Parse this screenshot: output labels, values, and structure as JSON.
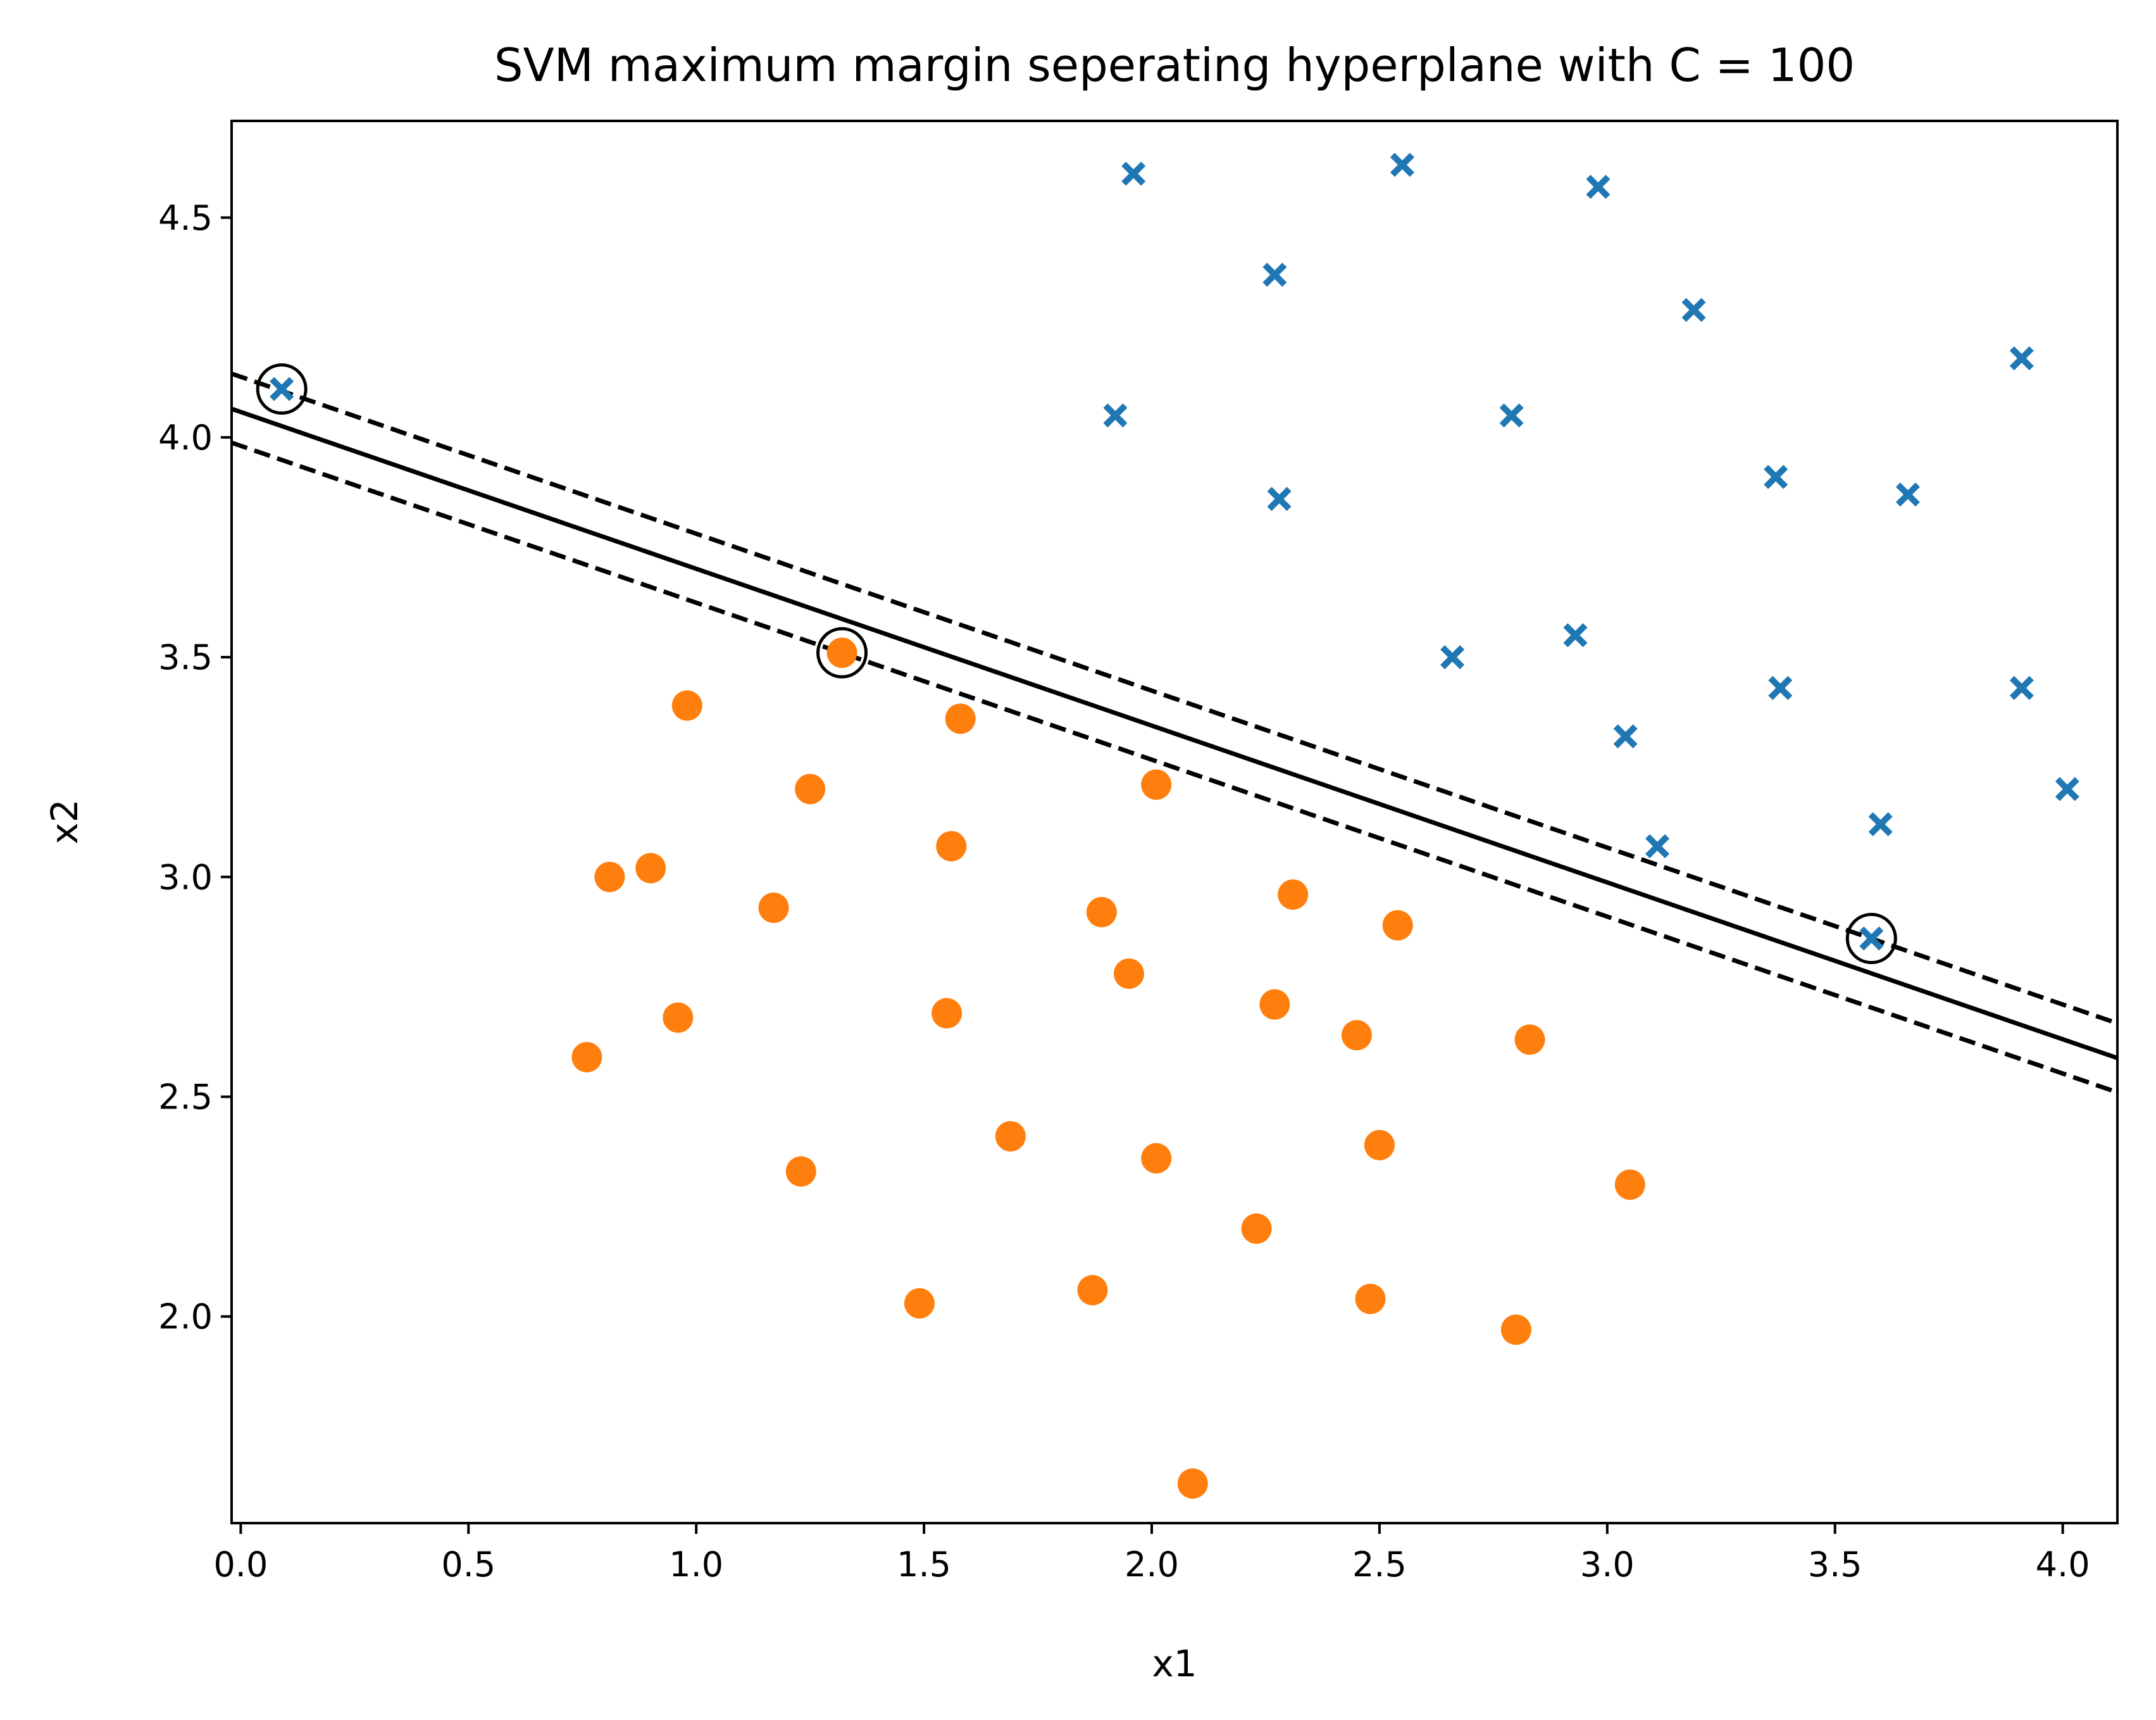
{
  "chart_data": {
    "type": "scatter",
    "title": "SVM maximum margin seperating hyperplane with C = 100",
    "xlabel": "x1",
    "ylabel": "x2",
    "xlim": [
      -0.02,
      4.12
    ],
    "ylim": [
      1.53,
      4.72
    ],
    "xticks": [
      {
        "value": 0.0,
        "label": "0.0"
      },
      {
        "value": 0.5,
        "label": "0.5"
      },
      {
        "value": 1.0,
        "label": "1.0"
      },
      {
        "value": 1.5,
        "label": "1.5"
      },
      {
        "value": 2.0,
        "label": "2.0"
      },
      {
        "value": 2.5,
        "label": "2.5"
      },
      {
        "value": 3.0,
        "label": "3.0"
      },
      {
        "value": 3.5,
        "label": "3.5"
      },
      {
        "value": 4.0,
        "label": "4.0"
      }
    ],
    "yticks": [
      {
        "value": 2.0,
        "label": "2.0"
      },
      {
        "value": 2.5,
        "label": "2.5"
      },
      {
        "value": 3.0,
        "label": "3.0"
      },
      {
        "value": 3.5,
        "label": "3.5"
      },
      {
        "value": 4.0,
        "label": "4.0"
      },
      {
        "value": 4.5,
        "label": "4.5"
      }
    ],
    "grid": false,
    "legend": "none",
    "series": [
      {
        "marker": "x-filled",
        "color": "#1f77b4",
        "points": [
          [
            0.09,
            4.11
          ],
          [
            1.96,
            4.6
          ],
          [
            2.27,
            4.37
          ],
          [
            2.55,
            4.62
          ],
          [
            2.98,
            4.57
          ],
          [
            3.19,
            4.29
          ],
          [
            3.91,
            4.18
          ],
          [
            1.92,
            4.05
          ],
          [
            2.79,
            4.05
          ],
          [
            2.28,
            3.86
          ],
          [
            3.37,
            3.91
          ],
          [
            3.66,
            3.87
          ],
          [
            2.66,
            3.5
          ],
          [
            2.93,
            3.55
          ],
          [
            3.38,
            3.43
          ],
          [
            3.91,
            3.43
          ],
          [
            3.04,
            3.32
          ],
          [
            4.01,
            3.2
          ],
          [
            3.11,
            3.07
          ],
          [
            3.6,
            3.12
          ],
          [
            3.58,
            2.86
          ]
        ]
      },
      {
        "marker": "circle",
        "color": "#ff7f0e",
        "points": [
          [
            1.32,
            3.51
          ],
          [
            0.98,
            3.39
          ],
          [
            1.58,
            3.36
          ],
          [
            1.25,
            3.2
          ],
          [
            2.01,
            3.21
          ],
          [
            1.56,
            3.07
          ],
          [
            0.81,
            3.0
          ],
          [
            0.9,
            3.02
          ],
          [
            1.17,
            2.93
          ],
          [
            1.89,
            2.92
          ],
          [
            2.31,
            2.96
          ],
          [
            2.54,
            2.89
          ],
          [
            1.95,
            2.78
          ],
          [
            0.96,
            2.68
          ],
          [
            1.55,
            2.69
          ],
          [
            2.27,
            2.71
          ],
          [
            2.45,
            2.64
          ],
          [
            2.83,
            2.63
          ],
          [
            0.76,
            2.59
          ],
          [
            1.69,
            2.41
          ],
          [
            2.01,
            2.36
          ],
          [
            2.5,
            2.39
          ],
          [
            1.23,
            2.33
          ],
          [
            3.05,
            2.3
          ],
          [
            2.23,
            2.2
          ],
          [
            1.49,
            2.03
          ],
          [
            1.87,
            2.06
          ],
          [
            2.48,
            2.04
          ],
          [
            2.8,
            1.97
          ],
          [
            2.09,
            1.62
          ]
        ]
      }
    ],
    "support_vectors": [
      [
        0.09,
        4.11
      ],
      [
        1.32,
        3.51
      ],
      [
        3.58,
        2.86
      ]
    ],
    "lines": [
      {
        "style": "solid",
        "color": "#000000",
        "from": [
          -0.02,
          4.065
        ],
        "to": [
          4.12,
          2.588
        ]
      },
      {
        "style": "dashed",
        "color": "#000000",
        "from": [
          -0.02,
          4.145
        ],
        "to": [
          4.12,
          2.667
        ]
      },
      {
        "style": "dashed",
        "color": "#000000",
        "from": [
          -0.02,
          3.988
        ],
        "to": [
          4.12,
          2.51
        ]
      }
    ]
  }
}
